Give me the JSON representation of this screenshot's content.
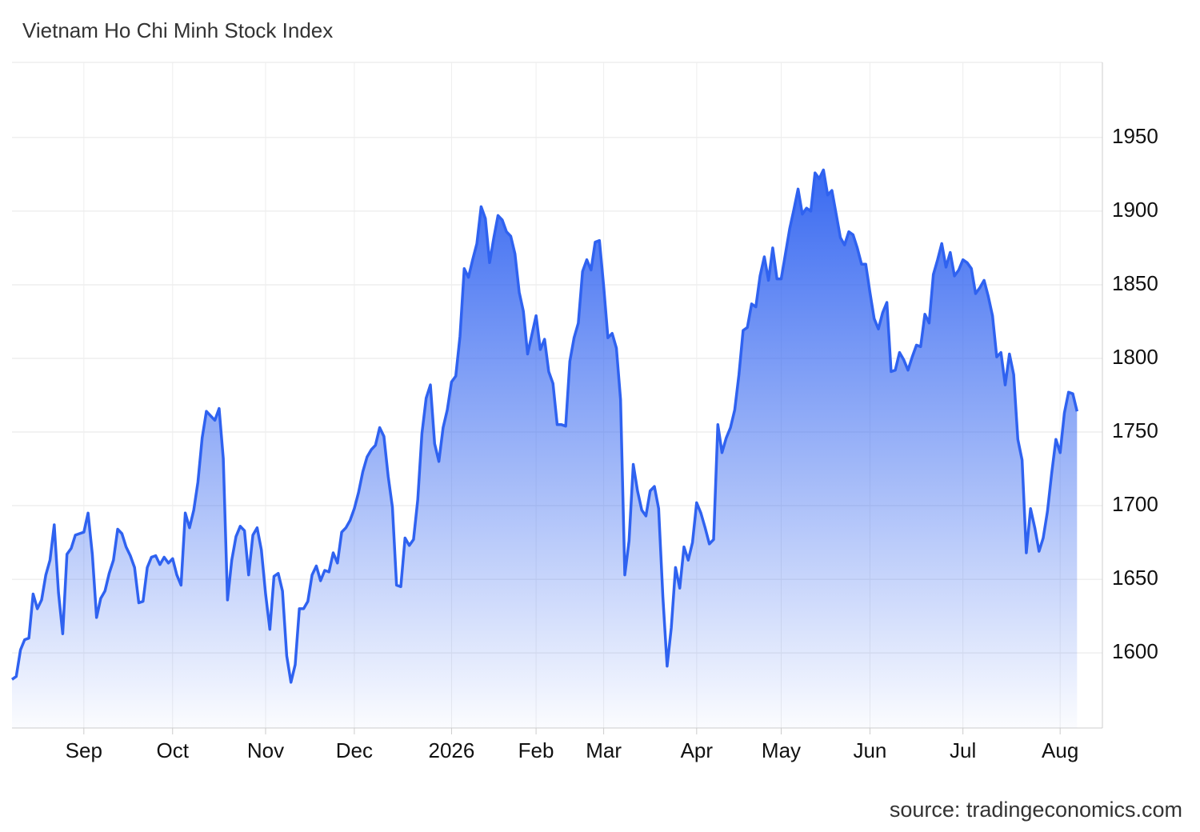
{
  "chart_data": {
    "type": "area",
    "title": "Vietnam Ho Chi Minh Stock Index",
    "source": "source: tradingeconomics.com",
    "color": "#2f62f0",
    "grid": true,
    "values": [
      1582,
      1584,
      1602,
      1609,
      1610,
      1640,
      1630,
      1636,
      1653,
      1663,
      1687,
      1641,
      1613,
      1667,
      1671,
      1680,
      1681,
      1682,
      1695,
      1667,
      1624,
      1637,
      1642,
      1654,
      1663,
      1684,
      1681,
      1672,
      1666,
      1658,
      1634,
      1635,
      1658,
      1665,
      1666,
      1660,
      1665,
      1661,
      1664,
      1653,
      1646,
      1695,
      1685,
      1697,
      1716,
      1746,
      1764,
      1761,
      1758,
      1766,
      1732,
      1636,
      1663,
      1679,
      1686,
      1683,
      1653,
      1680,
      1685,
      1670,
      1640,
      1616,
      1652,
      1654,
      1642,
      1598,
      1580,
      1592,
      1630,
      1630,
      1635,
      1653,
      1659,
      1649,
      1656,
      1655,
      1668,
      1661,
      1682,
      1685,
      1690,
      1698,
      1709,
      1723,
      1733,
      1738,
      1741,
      1753,
      1747,
      1720,
      1699,
      1646,
      1645,
      1678,
      1673,
      1677,
      1704,
      1749,
      1773,
      1782,
      1742,
      1730,
      1753,
      1765,
      1784,
      1788,
      1815,
      1861,
      1855,
      1867,
      1878,
      1903,
      1895,
      1865,
      1882,
      1897,
      1894,
      1886,
      1883,
      1871,
      1845,
      1832,
      1803,
      1816,
      1829,
      1806,
      1813,
      1791,
      1783,
      1755,
      1755,
      1754,
      1798,
      1814,
      1824,
      1859,
      1867,
      1860,
      1879,
      1880,
      1849,
      1814,
      1817,
      1807,
      1772,
      1653,
      1676,
      1728,
      1710,
      1697,
      1693,
      1710,
      1713,
      1698,
      1638,
      1591,
      1617,
      1658,
      1644,
      1672,
      1663,
      1675,
      1702,
      1695,
      1685,
      1674,
      1677,
      1755,
      1736,
      1746,
      1753,
      1765,
      1789,
      1819,
      1821,
      1837,
      1835,
      1856,
      1869,
      1853,
      1875,
      1854,
      1854,
      1871,
      1888,
      1901,
      1915,
      1898,
      1902,
      1900,
      1926,
      1922,
      1928,
      1911,
      1914,
      1898,
      1882,
      1877,
      1886,
      1884,
      1875,
      1864,
      1864,
      1845,
      1827,
      1820,
      1831,
      1838,
      1791,
      1792,
      1804,
      1799,
      1792,
      1801,
      1809,
      1808,
      1830,
      1824,
      1857,
      1867,
      1878,
      1862,
      1872,
      1856,
      1860,
      1867,
      1865,
      1861,
      1844,
      1848,
      1853,
      1842,
      1829,
      1801,
      1804,
      1782,
      1803,
      1789,
      1745,
      1731,
      1668,
      1698,
      1685,
      1669,
      1678,
      1696,
      1722,
      1745,
      1736,
      1763,
      1777,
      1776,
      1764
    ],
    "xlim": [
      0,
      258
    ],
    "xticks": [
      {
        "value": 17,
        "label": "Sep"
      },
      {
        "value": 38,
        "label": "Oct"
      },
      {
        "value": 60,
        "label": "Nov"
      },
      {
        "value": 81,
        "label": "Dec"
      },
      {
        "value": 104,
        "label": "2026"
      },
      {
        "value": 124,
        "label": "Feb"
      },
      {
        "value": 140,
        "label": "Mar"
      },
      {
        "value": 162,
        "label": "Apr"
      },
      {
        "value": 182,
        "label": "May"
      },
      {
        "value": 203,
        "label": "Jun"
      },
      {
        "value": 225,
        "label": "Jul"
      },
      {
        "value": 248,
        "label": "Aug"
      }
    ],
    "ylim": [
      1549,
      2001
    ],
    "yticks": [
      1600,
      1650,
      1700,
      1750,
      1800,
      1850,
      1900,
      1950
    ]
  }
}
